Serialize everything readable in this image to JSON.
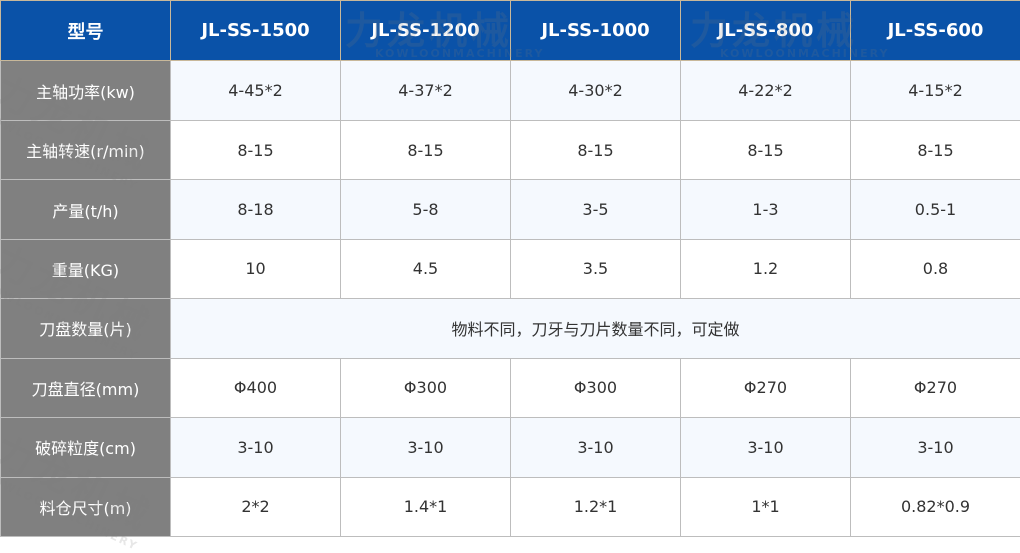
{
  "header": {
    "label": "型号",
    "models": [
      "JL-SS-1500",
      "JL-SS-1200",
      "JL-SS-1000",
      "JL-SS-800",
      "JL-SS-600"
    ]
  },
  "rows": [
    {
      "label": "主轴功率(kw)",
      "values": [
        "4-45*2",
        "4-37*2",
        "4-30*2",
        "4-22*2",
        "4-15*2"
      ]
    },
    {
      "label": "主轴转速(r/min)",
      "values": [
        "8-15",
        "8-15",
        "8-15",
        "8-15",
        "8-15"
      ]
    },
    {
      "label": "产量(t/h)",
      "values": [
        "8-18",
        "5-8",
        "3-5",
        "1-3",
        "0.5-1"
      ]
    },
    {
      "label": "重量(KG)",
      "values": [
        "10",
        "4.5",
        "3.5",
        "1.2",
        "0.8"
      ]
    },
    {
      "label": "刀盘数量(片)",
      "merged": "物料不同，刀牙与刀片数量不同，可定做"
    },
    {
      "label": "刀盘直径(mm)",
      "values": [
        "Φ400",
        "Φ300",
        "Φ300",
        "Φ270",
        "Φ270"
      ]
    },
    {
      "label": "破碎粒度(cm)",
      "values": [
        "3-10",
        "3-10",
        "3-10",
        "3-10",
        "3-10"
      ]
    },
    {
      "label": "料仓尺寸(m)",
      "values": [
        "2*2",
        "1.4*1",
        "1.2*1",
        "1*1",
        "0.82*0.9"
      ]
    }
  ],
  "watermark": {
    "cn": "力龙机械",
    "en": "KOWLOONMACHINERY"
  },
  "colors": {
    "header": "#0a52a8",
    "label_column": "#808080",
    "alt_row": "#f5f9fe"
  }
}
